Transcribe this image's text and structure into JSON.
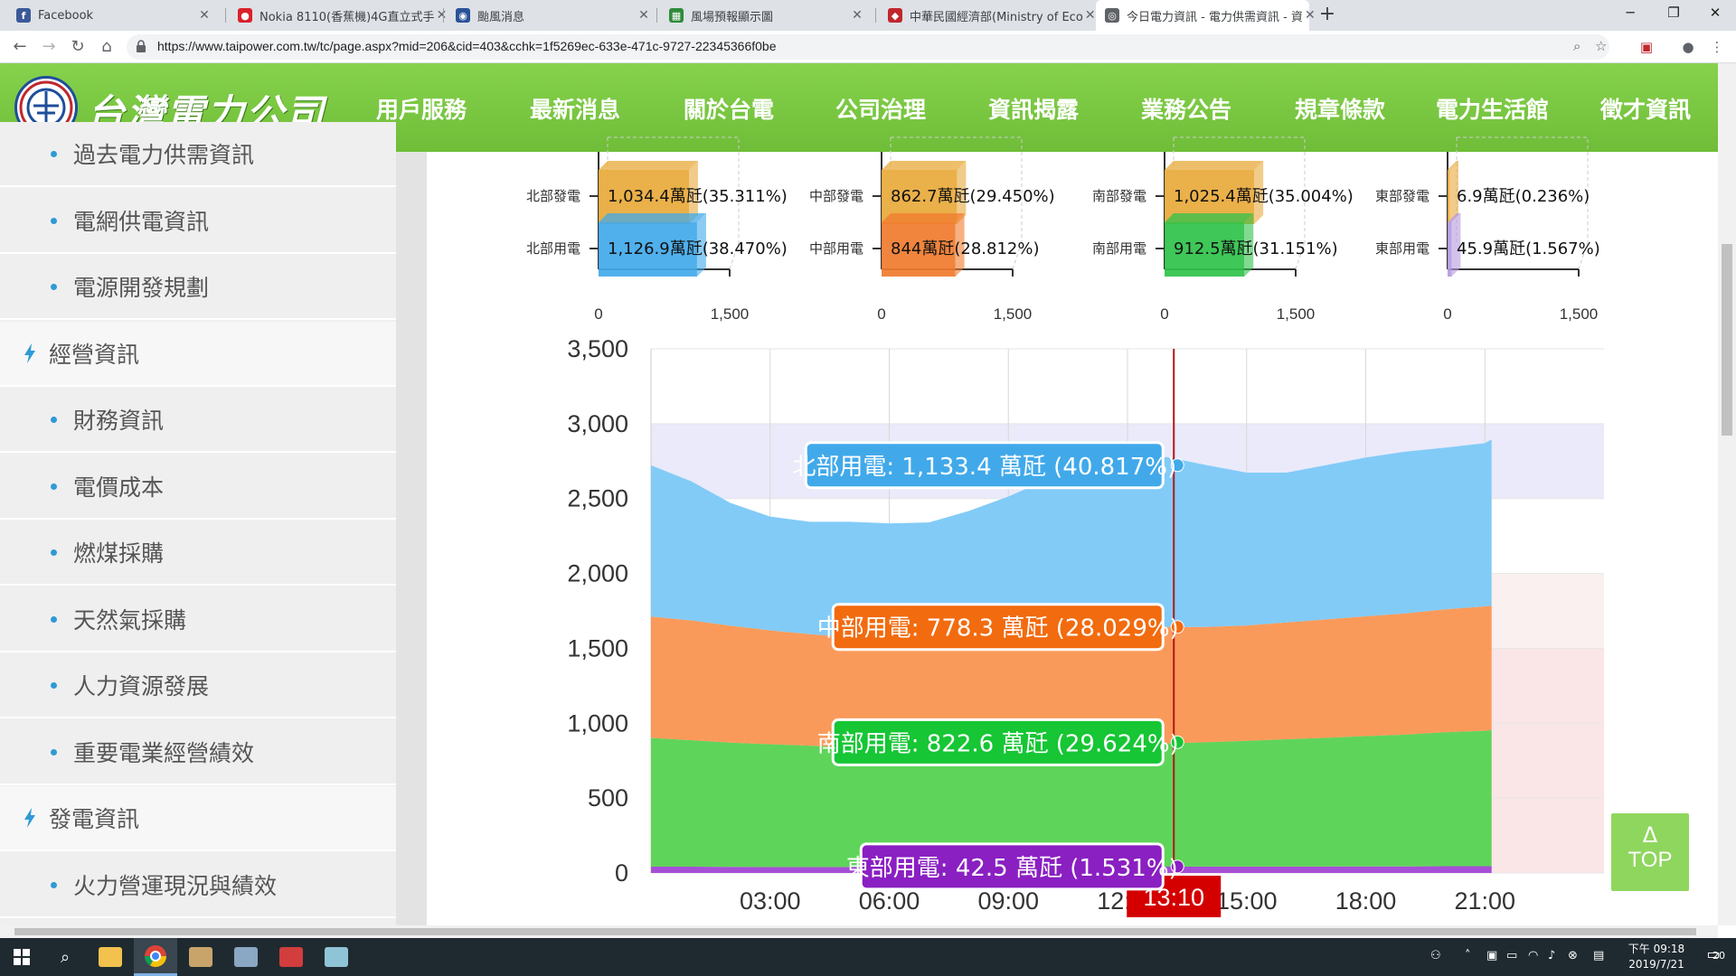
{
  "browser": {
    "tabs": [
      {
        "title": "Facebook",
        "icon": "facebook-icon",
        "color": "#3b5998",
        "glyph": "f"
      },
      {
        "title": "Nokia 8110(香蕉機)4G直立式手",
        "icon": "site-icon",
        "color": "#d9212b",
        "glyph": "●"
      },
      {
        "title": "颱風消息",
        "icon": "eye-icon",
        "color": "#2a5298",
        "glyph": "◉"
      },
      {
        "title": "風場預報顯示圖",
        "icon": "map-icon",
        "color": "#2e8b3a",
        "glyph": "▦"
      },
      {
        "title": "中華民國經濟部(Ministry of Eco",
        "icon": "moea-icon",
        "color": "#c0272d",
        "glyph": "◆"
      },
      {
        "title": "今日電力資訊 - 電力供需資訊 - 資",
        "icon": "globe-icon",
        "color": "#5f6368",
        "glyph": "◎"
      }
    ],
    "url": "https://www.taipower.com.tw/tc/page.aspx?mid=206&cid=403&cchk=1f5269ec-633e-471c-9727-22345366f0be"
  },
  "site": {
    "logo_text": "台灣電力公司",
    "nav": [
      "用戶服務",
      "最新消息",
      "關於台電",
      "公司治理",
      "資訊揭露",
      "業務公告",
      "規章條款",
      "電力生活館",
      "徵才資訊"
    ]
  },
  "sidebar": {
    "items": [
      {
        "label": "過去電力供需資訊",
        "type": "sub"
      },
      {
        "label": "電網供電資訊",
        "type": "sub"
      },
      {
        "label": "電源開發規劃",
        "type": "sub"
      },
      {
        "label": "經營資訊",
        "type": "section"
      },
      {
        "label": "財務資訊",
        "type": "sub"
      },
      {
        "label": "電價成本",
        "type": "sub"
      },
      {
        "label": "燃煤採購",
        "type": "sub"
      },
      {
        "label": "天然氣採購",
        "type": "sub"
      },
      {
        "label": "人力資源發展",
        "type": "sub"
      },
      {
        "label": "重要電業經營績效",
        "type": "sub"
      },
      {
        "label": "發電資訊",
        "type": "section"
      },
      {
        "label": "火力營運現況與績效",
        "type": "sub"
      }
    ]
  },
  "top_button": {
    "arrow": "Δ",
    "label": "TOP"
  },
  "taskbar": {
    "time": "下午 09:18",
    "date": "2019/7/21",
    "notification_count": "20"
  },
  "chart_data": [
    {
      "type": "bar",
      "region": "北部",
      "xlim": [
        0,
        1500
      ],
      "tick_labels": [
        "0",
        "1,500"
      ],
      "bars": [
        {
          "category": "北部發電",
          "value": 1034.4,
          "label": "1,034.4萬瓩(35.311%)",
          "color": "#e8a93a"
        },
        {
          "category": "北部用電",
          "value": 1126.9,
          "label": "1,126.9萬瓩(38.470%)",
          "color": "#41a9ea"
        }
      ]
    },
    {
      "type": "bar",
      "region": "中部",
      "xlim": [
        0,
        1500
      ],
      "tick_labels": [
        "0",
        "1,500"
      ],
      "bars": [
        {
          "category": "中部發電",
          "value": 862.7,
          "label": "862.7萬瓩(29.450%)",
          "color": "#e8a93a"
        },
        {
          "category": "中部用電",
          "value": 844,
          "label": "844萬瓩(28.812%)",
          "color": "#f07b2e"
        }
      ]
    },
    {
      "type": "bar",
      "region": "南部",
      "xlim": [
        0,
        1500
      ],
      "tick_labels": [
        "0",
        "1,500"
      ],
      "bars": [
        {
          "category": "南部發電",
          "value": 1025.4,
          "label": "1,025.4萬瓩(35.004%)",
          "color": "#e8a93a"
        },
        {
          "category": "南部用電",
          "value": 912.5,
          "label": "912.5萬瓩(31.151%)",
          "color": "#2fc24a"
        }
      ]
    },
    {
      "type": "bar",
      "region": "東部",
      "xlim": [
        0,
        1500
      ],
      "tick_labels": [
        "0",
        "1,500"
      ],
      "bars": [
        {
          "category": "東部發電",
          "value": 6.9,
          "label": "6.9萬瓩(0.236%)",
          "color": "#e8a93a"
        },
        {
          "category": "東部用電",
          "value": 45.9,
          "label": "45.9萬瓩(1.567%)",
          "color": "#b59be0"
        }
      ]
    },
    {
      "type": "area",
      "stacked": true,
      "ylim": [
        0,
        3500
      ],
      "y_ticks": [
        0,
        500,
        1000,
        1500,
        2000,
        2500,
        3000,
        3500
      ],
      "y_tick_labels": [
        "0",
        "500",
        "1,000",
        "1,500",
        "2,000",
        "2,500",
        "3,000",
        "3,500"
      ],
      "xlim": [
        0,
        24
      ],
      "x_ticks": [
        3,
        6,
        9,
        12,
        15,
        18,
        21
      ],
      "x_tick_labels": [
        "03:00",
        "06:00",
        "09:00",
        "12:00",
        "15:00",
        "18:00",
        "21:00"
      ],
      "cursor": {
        "x": 13.1667,
        "label": "13:10"
      },
      "x_hours": [
        0,
        1,
        2,
        3,
        4,
        5,
        6,
        7,
        8,
        9,
        10,
        11,
        12,
        13,
        14,
        15,
        16,
        17,
        18,
        19,
        20,
        21,
        21.17
      ],
      "series": [
        {
          "name": "東部用電",
          "color": "#a64fd6",
          "values": [
            42,
            42,
            41,
            40,
            40,
            40,
            40,
            41,
            42,
            42,
            42,
            42,
            42,
            42.5,
            43,
            43,
            43,
            43,
            44,
            44,
            45,
            45,
            45
          ]
        },
        {
          "name": "南部用電",
          "color": "#5fd45a",
          "values": [
            860,
            845,
            830,
            820,
            810,
            800,
            805,
            810,
            815,
            822,
            828,
            830,
            832,
            822.6,
            830,
            840,
            850,
            860,
            870,
            880,
            895,
            905,
            910
          ]
        },
        {
          "name": "中部用電",
          "color": "#fa9a5a",
          "values": [
            810,
            800,
            780,
            760,
            745,
            735,
            730,
            700,
            690,
            710,
            740,
            760,
            770,
            778.3,
            770,
            770,
            780,
            790,
            800,
            810,
            820,
            830,
            830
          ]
        },
        {
          "name": "北部用電",
          "color": "#82cbf7",
          "values": [
            1010,
            930,
            820,
            760,
            750,
            770,
            760,
            790,
            870,
            940,
            1020,
            1090,
            1120,
            1133.4,
            1080,
            1020,
            1000,
            1030,
            1060,
            1080,
            1080,
            1090,
            1110
          ]
        }
      ],
      "tooltips": [
        {
          "series": "北部用電",
          "text": "北部用電: 1,133.4 萬瓩 (40.817%)",
          "color": "#41a9ea"
        },
        {
          "series": "中部用電",
          "text": "中部用電: 778.3 萬瓩 (28.029%)",
          "color": "#f26b0f"
        },
        {
          "series": "南部用電",
          "text": "南部用電: 822.6 萬瓩 (29.624%)",
          "color": "#16c634"
        },
        {
          "series": "東部用電",
          "text": "東部用電: 42.5 萬瓩 (1.531%)",
          "color": "#8a1fc2"
        }
      ],
      "bands": [
        {
          "from": 2500,
          "to": 3000,
          "color": "#dcdcf7"
        },
        {
          "from": 1500,
          "to": 2000,
          "color": "#f7e6e4"
        },
        {
          "from": 0,
          "to": 1500,
          "color": "#f7d5d5"
        }
      ]
    }
  ]
}
